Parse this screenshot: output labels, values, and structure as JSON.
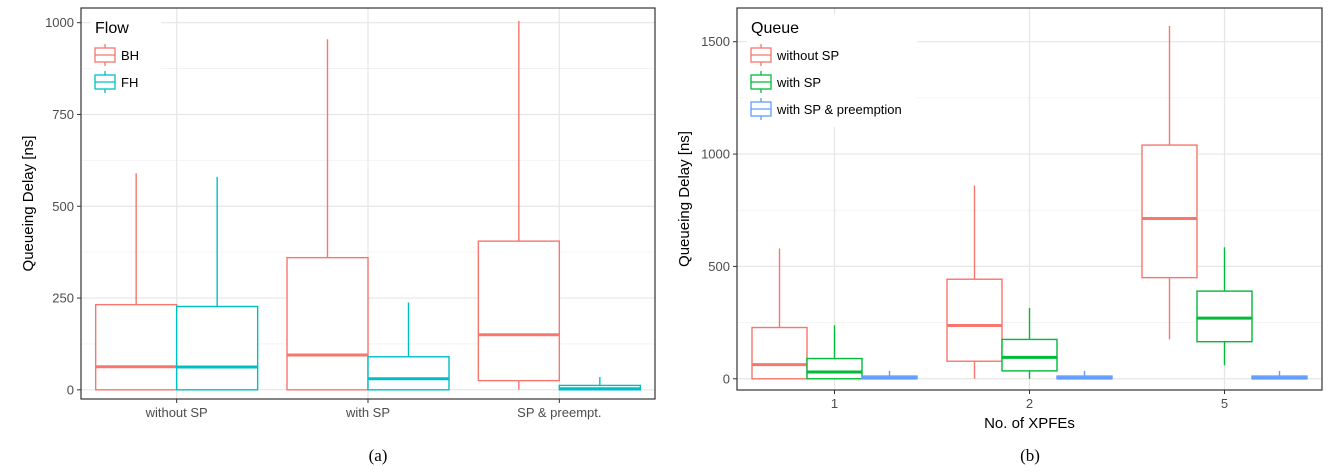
{
  "chart_data": [
    {
      "type": "box",
      "caption": "(a)",
      "xlabel": "",
      "ylabel": "Queueing Delay [ns]",
      "ylim": [
        -25,
        1040
      ],
      "yticks": [
        0,
        250,
        500,
        750,
        1000
      ],
      "categories": [
        "without SP",
        "with SP",
        "SP & preempt."
      ],
      "grid": true,
      "legend": {
        "title": "Flow",
        "position": "top-left"
      },
      "series": [
        {
          "name": "BH",
          "color": "#F8766D",
          "boxes": [
            {
              "min": 0,
              "q1": 0,
              "median": 63,
              "q3": 232,
              "max": 590
            },
            {
              "min": 0,
              "q1": 0,
              "median": 95,
              "q3": 360,
              "max": 955
            },
            {
              "min": 0,
              "q1": 25,
              "median": 150,
              "q3": 405,
              "max": 1005
            }
          ]
        },
        {
          "name": "FH",
          "color": "#00BFC4",
          "boxes": [
            {
              "min": 0,
              "q1": 0,
              "median": 62,
              "q3": 227,
              "max": 580
            },
            {
              "min": 0,
              "q1": 0,
              "median": 30,
              "q3": 90,
              "max": 238
            },
            {
              "min": 0,
              "q1": 0,
              "median": 3,
              "q3": 12,
              "max": 35
            }
          ]
        }
      ]
    },
    {
      "type": "box",
      "caption": "(b)",
      "xlabel": "No. of XPFEs",
      "ylabel": "Queueing Delay [ns]",
      "ylim": [
        -50,
        1650
      ],
      "yticks": [
        0,
        500,
        1000,
        1500
      ],
      "categories": [
        "1",
        "2",
        "5"
      ],
      "grid": true,
      "legend": {
        "title": "Queue",
        "position": "top-left"
      },
      "series": [
        {
          "name": "without SP",
          "color": "#F8766D",
          "boxes": [
            {
              "min": 0,
              "q1": 0,
              "median": 63,
              "q3": 228,
              "max": 580
            },
            {
              "min": 0,
              "q1": 78,
              "median": 237,
              "q3": 443,
              "max": 860
            },
            {
              "min": 175,
              "q1": 450,
              "median": 713,
              "q3": 1040,
              "max": 1570
            }
          ]
        },
        {
          "name": "with SP",
          "color": "#00BA38",
          "boxes": [
            {
              "min": 0,
              "q1": 0,
              "median": 30,
              "q3": 90,
              "max": 238
            },
            {
              "min": 0,
              "q1": 35,
              "median": 95,
              "q3": 175,
              "max": 315
            },
            {
              "min": 60,
              "q1": 165,
              "median": 270,
              "q3": 390,
              "max": 585
            }
          ]
        },
        {
          "name": "with SP & preemption",
          "color": "#619CFF",
          "boxes": [
            {
              "min": 0,
              "q1": 0,
              "median": 3,
              "q3": 12,
              "max": 35
            },
            {
              "min": 0,
              "q1": 0,
              "median": 3,
              "q3": 12,
              "max": 35
            },
            {
              "min": 0,
              "q1": 0,
              "median": 3,
              "q3": 12,
              "max": 35
            }
          ]
        }
      ]
    }
  ]
}
